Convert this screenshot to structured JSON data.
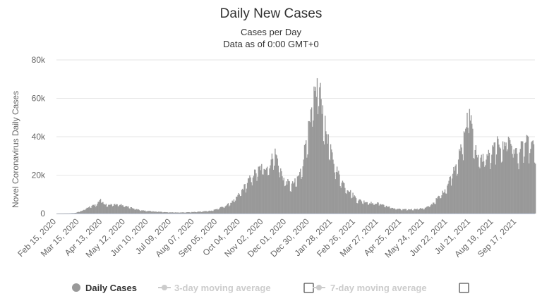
{
  "chart_data": {
    "type": "bar",
    "title": "Daily New Cases",
    "subtitle_lines": [
      "Cases per Day",
      "Data as of 0:00 GMT+0"
    ],
    "xlabel": "",
    "ylabel": "Novel Coronavirus Daily Cases",
    "ylim": [
      0,
      80000
    ],
    "y_ticks": [
      {
        "value": 0,
        "label": "0"
      },
      {
        "value": 20000,
        "label": "20k"
      },
      {
        "value": 40000,
        "label": "40k"
      },
      {
        "value": 60000,
        "label": "60k"
      },
      {
        "value": 80000,
        "label": "80k"
      }
    ],
    "x_start": "2020-02-15",
    "x_end": "2021-10-10",
    "x_ticks": [
      {
        "date": "2020-02-15",
        "label": "Feb 15, 2020"
      },
      {
        "date": "2020-03-15",
        "label": "Mar 15, 2020"
      },
      {
        "date": "2020-04-13",
        "label": "Apr 13, 2020"
      },
      {
        "date": "2020-05-12",
        "label": "May 12, 2020"
      },
      {
        "date": "2020-06-10",
        "label": "Jun 10, 2020"
      },
      {
        "date": "2020-07-09",
        "label": "Jul 09, 2020"
      },
      {
        "date": "2020-08-07",
        "label": "Aug 07, 2020"
      },
      {
        "date": "2020-09-05",
        "label": "Sep 05, 2020"
      },
      {
        "date": "2020-10-04",
        "label": "Oct 04, 2020"
      },
      {
        "date": "2020-11-02",
        "label": "Nov 02, 2020"
      },
      {
        "date": "2020-12-01",
        "label": "Dec 01, 2020"
      },
      {
        "date": "2020-12-30",
        "label": "Dec 30, 2020"
      },
      {
        "date": "2021-01-28",
        "label": "Jan 28, 2021"
      },
      {
        "date": "2021-02-26",
        "label": "Feb 26, 2021"
      },
      {
        "date": "2021-03-27",
        "label": "Mar 27, 2021"
      },
      {
        "date": "2021-04-25",
        "label": "Apr 25, 2021"
      },
      {
        "date": "2021-05-24",
        "label": "May 24, 2021"
      },
      {
        "date": "2021-06-22",
        "label": "Jun 22, 2021"
      },
      {
        "date": "2021-07-21",
        "label": "Jul 21, 2021"
      },
      {
        "date": "2021-08-19",
        "label": "Aug 19, 2021"
      },
      {
        "date": "2021-09-17",
        "label": "Sep 17, 2021"
      }
    ],
    "series": [
      {
        "name": "Daily Cases",
        "color": "#999999",
        "points": [
          [
            "2020-02-15",
            0
          ],
          [
            "2020-03-01",
            80
          ],
          [
            "2020-03-10",
            400
          ],
          [
            "2020-03-18",
            1500
          ],
          [
            "2020-03-25",
            3000
          ],
          [
            "2020-04-01",
            4200
          ],
          [
            "2020-04-06",
            5000
          ],
          [
            "2020-04-10",
            7500
          ],
          [
            "2020-04-15",
            4800
          ],
          [
            "2020-04-22",
            4500
          ],
          [
            "2020-05-01",
            4700
          ],
          [
            "2020-05-08",
            4200
          ],
          [
            "2020-05-15",
            3400
          ],
          [
            "2020-05-22",
            2500
          ],
          [
            "2020-06-01",
            1600
          ],
          [
            "2020-06-15",
            1100
          ],
          [
            "2020-07-01",
            700
          ],
          [
            "2020-07-15",
            550
          ],
          [
            "2020-08-01",
            700
          ],
          [
            "2020-08-15",
            1000
          ],
          [
            "2020-08-28",
            1500
          ],
          [
            "2020-09-05",
            2500
          ],
          [
            "2020-09-15",
            4000
          ],
          [
            "2020-09-25",
            6500
          ],
          [
            "2020-10-04",
            11000
          ],
          [
            "2020-10-12",
            16000
          ],
          [
            "2020-10-20",
            20000
          ],
          [
            "2020-10-28",
            23000
          ],
          [
            "2020-11-05",
            24000
          ],
          [
            "2020-11-10",
            25000
          ],
          [
            "2020-11-15",
            32000
          ],
          [
            "2020-11-20",
            26000
          ],
          [
            "2020-11-26",
            18000
          ],
          [
            "2020-12-01",
            16000
          ],
          [
            "2020-12-07",
            14500
          ],
          [
            "2020-12-12",
            16500
          ],
          [
            "2020-12-17",
            20000
          ],
          [
            "2020-12-21",
            26000
          ],
          [
            "2020-12-25",
            38000
          ],
          [
            "2020-12-30",
            45000
          ],
          [
            "2021-01-04",
            58000
          ],
          [
            "2021-01-07",
            63000
          ],
          [
            "2021-01-10",
            66000
          ],
          [
            "2021-01-14",
            55000
          ],
          [
            "2021-01-19",
            42000
          ],
          [
            "2021-01-24",
            33000
          ],
          [
            "2021-01-30",
            25000
          ],
          [
            "2021-02-05",
            19000
          ],
          [
            "2021-02-12",
            14000
          ],
          [
            "2021-02-20",
            10500
          ],
          [
            "2021-02-28",
            7000
          ],
          [
            "2021-03-10",
            6000
          ],
          [
            "2021-03-20",
            5200
          ],
          [
            "2021-03-28",
            5200
          ],
          [
            "2021-04-05",
            3800
          ],
          [
            "2021-04-15",
            2600
          ],
          [
            "2021-04-25",
            2100
          ],
          [
            "2021-05-05",
            2100
          ],
          [
            "2021-05-15",
            2400
          ],
          [
            "2021-05-24",
            2800
          ],
          [
            "2021-06-01",
            4500
          ],
          [
            "2021-06-08",
            7500
          ],
          [
            "2021-06-15",
            10500
          ],
          [
            "2021-06-22",
            15000
          ],
          [
            "2021-06-28",
            22000
          ],
          [
            "2021-07-05",
            28000
          ],
          [
            "2021-07-10",
            35000
          ],
          [
            "2021-07-15",
            45000
          ],
          [
            "2021-07-18",
            53000
          ],
          [
            "2021-07-21",
            48000
          ],
          [
            "2021-07-26",
            33000
          ],
          [
            "2021-08-01",
            27000
          ],
          [
            "2021-08-08",
            29000
          ],
          [
            "2021-08-15",
            30000
          ],
          [
            "2021-08-20",
            34000
          ],
          [
            "2021-08-25",
            36000
          ],
          [
            "2021-08-31",
            33000
          ],
          [
            "2021-09-05",
            40000
          ],
          [
            "2021-09-12",
            34000
          ],
          [
            "2021-09-17",
            30000
          ],
          [
            "2021-09-22",
            33000
          ],
          [
            "2021-09-28",
            36000
          ],
          [
            "2021-10-04",
            35000
          ],
          [
            "2021-10-10",
            33000
          ]
        ]
      }
    ],
    "legend": {
      "placement": "bottom",
      "items": [
        {
          "label": "Daily Cases",
          "active": true,
          "color": "#999999",
          "marker": "circle"
        },
        {
          "label": "3-day moving average",
          "active": false,
          "color": "#cccccc",
          "marker": "line-dot",
          "checkbox": true
        },
        {
          "label": "7-day moving average",
          "active": false,
          "color": "#cccccc",
          "marker": "line-dot",
          "checkbox": true
        }
      ]
    },
    "grid": true
  }
}
